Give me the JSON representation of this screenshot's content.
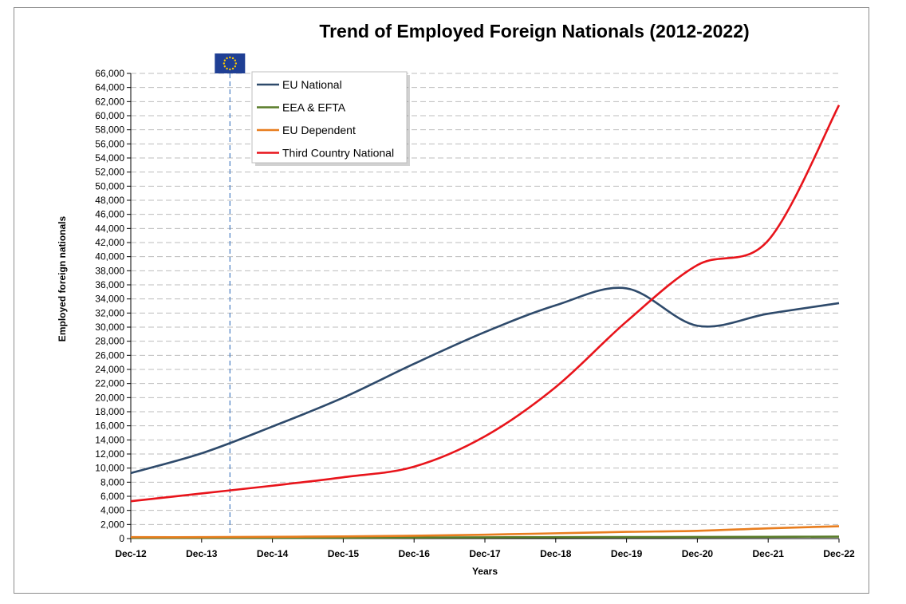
{
  "chart_data": {
    "type": "line",
    "title": "Trend of Employed Foreign Nationals (2012-2022)",
    "xlabel": "Years",
    "ylabel": "Employed foreign nationals",
    "categories": [
      "Dec-12",
      "Dec-13",
      "Dec-14",
      "Dec-15",
      "Dec-16",
      "Dec-17",
      "Dec-18",
      "Dec-19",
      "Dec-20",
      "Dec-21",
      "Dec-22"
    ],
    "ylim": [
      0,
      66000
    ],
    "ytick_step": 2000,
    "grid": "horizontal dashed",
    "legend_position": "top-left",
    "annotation": {
      "type": "eu-flag-marker",
      "x": "between Dec-13 and Dec-14",
      "icon": "eu-flag-icon"
    },
    "series": [
      {
        "name": "EU National",
        "color": "#2e4a6b",
        "values": [
          9300,
          12100,
          15900,
          20000,
          24800,
          29300,
          33100,
          35500,
          30200,
          31900,
          33400
        ]
      },
      {
        "name": "EEA & EFTA",
        "color": "#5a7d2a",
        "values": [
          100,
          100,
          100,
          120,
          150,
          180,
          200,
          220,
          230,
          250,
          280
        ]
      },
      {
        "name": "EU Dependent",
        "color": "#e87d1e",
        "values": [
          200,
          200,
          250,
          300,
          400,
          550,
          750,
          950,
          1100,
          1450,
          1750
        ]
      },
      {
        "name": "Third Country National",
        "color": "#e8141b",
        "values": [
          5300,
          6400,
          7500,
          8700,
          10200,
          14500,
          21500,
          30800,
          38800,
          42300,
          61500
        ]
      }
    ]
  }
}
